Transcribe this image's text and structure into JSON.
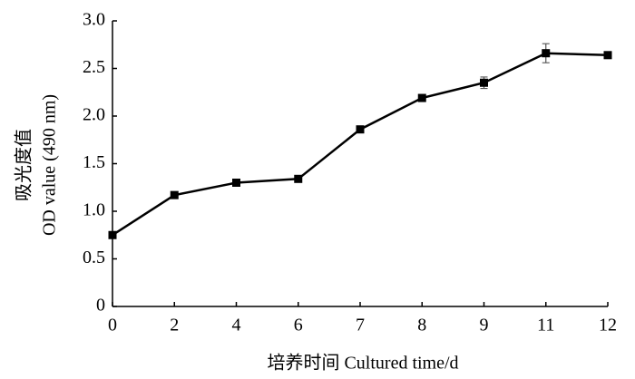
{
  "chart_data": {
    "type": "line",
    "x_label": "培养时间  Cultured time/d",
    "y_label": [
      "吸光度值",
      "OD value (490 nm)"
    ],
    "categories": [
      "0",
      "2",
      "4",
      "6",
      "7",
      "8",
      "9",
      "11",
      "12"
    ],
    "series": [
      {
        "color": "#000000",
        "values": [
          0.75,
          1.17,
          1.3,
          1.34,
          1.86,
          2.19,
          2.35,
          2.66,
          2.64
        ],
        "errors": [
          0.02,
          0.02,
          0.02,
          0.02,
          0.02,
          0.03,
          0.06,
          0.1,
          0.02
        ]
      }
    ],
    "ylim": [
      0,
      3
    ],
    "yticks": [
      0,
      0.5,
      {
        "value": 1,
        "label": "1.0"
      },
      1.5,
      {
        "value": 2,
        "label": "2.0"
      },
      2.5,
      {
        "value": 3,
        "label": "3.0"
      }
    ]
  }
}
